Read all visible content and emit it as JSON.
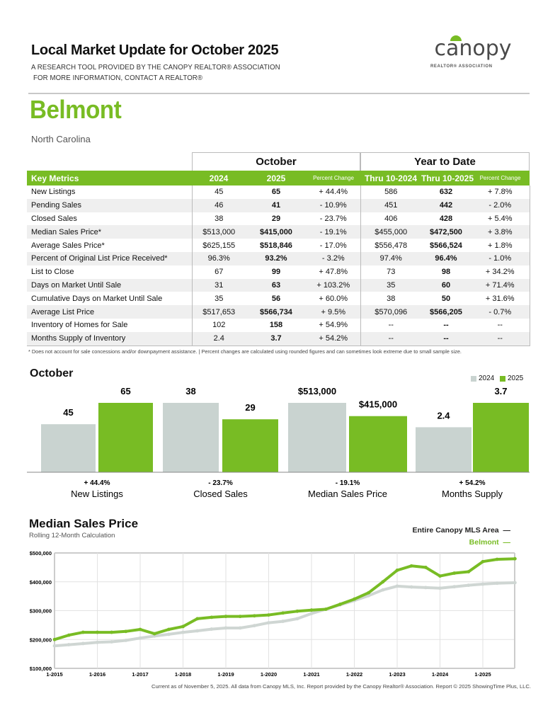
{
  "header": {
    "title": "Local Market Update for October 2025",
    "subtitle_1": "A RESEARCH TOOL PROVIDED BY THE CANOPY REALTOR® ASSOCIATION",
    "subtitle_2": "FOR MORE INFORMATION, CONTACT A REALTOR®",
    "logo_text": "canopy",
    "logo_subtext": "REALTOR® ASSOCIATION",
    "area": "Belmont",
    "state": "North Carolina"
  },
  "colors": {
    "accent": "#78bc24",
    "gray_bar": "#c9d3d0",
    "mls_line": "#cfd6d3"
  },
  "table": {
    "group_october": "October",
    "group_ytd": "Year to Date",
    "columns": [
      "Key Metrics",
      "2024",
      "2025",
      "Percent Change",
      "Thru 10-2024",
      "Thru 10-2025",
      "Percent Change"
    ],
    "rows": [
      [
        "New Listings",
        "45",
        "65",
        "+ 44.4%",
        "586",
        "632",
        "+ 7.8%"
      ],
      [
        "Pending Sales",
        "46",
        "41",
        "- 10.9%",
        "451",
        "442",
        "- 2.0%"
      ],
      [
        "Closed Sales",
        "38",
        "29",
        "- 23.7%",
        "406",
        "428",
        "+ 5.4%"
      ],
      [
        "Median Sales Price*",
        "$513,000",
        "$415,000",
        "- 19.1%",
        "$455,000",
        "$472,500",
        "+ 3.8%"
      ],
      [
        "Average Sales Price*",
        "$625,155",
        "$518,846",
        "- 17.0%",
        "$556,478",
        "$566,524",
        "+ 1.8%"
      ],
      [
        "Percent of Original List Price Received*",
        "96.3%",
        "93.2%",
        "- 3.2%",
        "97.4%",
        "96.4%",
        "- 1.0%"
      ],
      [
        "List to Close",
        "67",
        "99",
        "+ 47.8%",
        "73",
        "98",
        "+ 34.2%"
      ],
      [
        "Days on Market Until Sale",
        "31",
        "63",
        "+ 103.2%",
        "35",
        "60",
        "+ 71.4%"
      ],
      [
        "Cumulative Days on Market Until Sale",
        "35",
        "56",
        "+ 60.0%",
        "38",
        "50",
        "+ 31.6%"
      ],
      [
        "Average List Price",
        "$517,653",
        "$566,734",
        "+ 9.5%",
        "$570,096",
        "$566,205",
        "- 0.7%"
      ],
      [
        "Inventory of Homes for Sale",
        "102",
        "158",
        "+ 54.9%",
        "--",
        "--",
        "--"
      ],
      [
        "Months Supply of Inventory",
        "2.4",
        "3.7",
        "+ 54.2%",
        "--",
        "--",
        "--"
      ]
    ],
    "footnote": "* Does not account for sale concessions and/or downpayment assistance.  |  Percent changes are calculated using rounded figures and can sometimes look extreme due to small sample size."
  },
  "chart_data": [
    {
      "type": "bar",
      "title": "October",
      "legend": [
        "2024",
        "2025"
      ],
      "legend_position": "top-right",
      "categories": [
        "New Listings",
        "Closed Sales",
        "Median Sales Price",
        "Months Supply"
      ],
      "series": [
        {
          "name": "2024",
          "values": [
            45,
            38,
            513000,
            2.4
          ],
          "labels": [
            "45",
            "38",
            "$513,000",
            "2.4"
          ]
        },
        {
          "name": "2025",
          "values": [
            65,
            29,
            415000,
            3.7
          ],
          "labels": [
            "65",
            "29",
            "$415,000",
            "3.7"
          ]
        }
      ],
      "percent_changes": [
        "+ 44.4%",
        "- 23.7%",
        "- 19.1%",
        "+ 54.2%"
      ]
    },
    {
      "type": "line",
      "title": "Median Sales Price",
      "subtitle": "Rolling 12-Month Calculation",
      "legend_position": "top-right",
      "ylim": [
        100000,
        500000
      ],
      "y_ticks": [
        "$100,000",
        "$200,000",
        "$300,000",
        "$400,000",
        "$500,000"
      ],
      "x_ticks": [
        "1-2015",
        "1-2016",
        "1-2017",
        "1-2018",
        "1-2019",
        "1-2020",
        "1-2021",
        "1-2022",
        "1-2023",
        "1-2024",
        "1-2025"
      ],
      "grid": true,
      "series": [
        {
          "name": "Entire Canopy MLS Area",
          "color": "#cfd6d3",
          "points": [
            [
              "2015-01",
              178000
            ],
            [
              "2015-05",
              182000
            ],
            [
              "2015-09",
              186000
            ],
            [
              "2016-01",
              190000
            ],
            [
              "2016-05",
              192000
            ],
            [
              "2016-09",
              197000
            ],
            [
              "2017-01",
              205000
            ],
            [
              "2017-05",
              212000
            ],
            [
              "2017-09",
              218000
            ],
            [
              "2018-01",
              225000
            ],
            [
              "2018-05",
              230000
            ],
            [
              "2018-09",
              236000
            ],
            [
              "2019-01",
              240000
            ],
            [
              "2019-05",
              240000
            ],
            [
              "2019-09",
              248000
            ],
            [
              "2020-01",
              258000
            ],
            [
              "2020-05",
              263000
            ],
            [
              "2020-09",
              272000
            ],
            [
              "2021-01",
              290000
            ],
            [
              "2021-05",
              305000
            ],
            [
              "2021-09",
              320000
            ],
            [
              "2022-01",
              335000
            ],
            [
              "2022-05",
              352000
            ],
            [
              "2022-09",
              372000
            ],
            [
              "2023-01",
              385000
            ],
            [
              "2023-05",
              382000
            ],
            [
              "2023-09",
              380000
            ],
            [
              "2024-01",
              378000
            ],
            [
              "2024-05",
              383000
            ],
            [
              "2024-09",
              388000
            ],
            [
              "2025-01",
              392000
            ],
            [
              "2025-05",
              395000
            ],
            [
              "2025-10",
              397000
            ]
          ]
        },
        {
          "name": "Belmont",
          "color": "#78bc24",
          "points": [
            [
              "2015-01",
              200000
            ],
            [
              "2015-05",
              215000
            ],
            [
              "2015-09",
              225000
            ],
            [
              "2016-01",
              225000
            ],
            [
              "2016-05",
              225000
            ],
            [
              "2016-09",
              228000
            ],
            [
              "2017-01",
              235000
            ],
            [
              "2017-05",
              220000
            ],
            [
              "2017-09",
              235000
            ],
            [
              "2018-01",
              245000
            ],
            [
              "2018-05",
              272000
            ],
            [
              "2018-09",
              277000
            ],
            [
              "2019-01",
              280000
            ],
            [
              "2019-05",
              280000
            ],
            [
              "2019-09",
              282000
            ],
            [
              "2020-01",
              285000
            ],
            [
              "2020-05",
              292000
            ],
            [
              "2020-09",
              298000
            ],
            [
              "2021-01",
              302000
            ],
            [
              "2021-05",
              305000
            ],
            [
              "2021-09",
              322000
            ],
            [
              "2022-01",
              340000
            ],
            [
              "2022-05",
              362000
            ],
            [
              "2022-09",
              400000
            ],
            [
              "2023-01",
              440000
            ],
            [
              "2023-05",
              455000
            ],
            [
              "2023-09",
              450000
            ],
            [
              "2024-01",
              420000
            ],
            [
              "2024-05",
              430000
            ],
            [
              "2024-09",
              435000
            ],
            [
              "2025-01",
              470000
            ],
            [
              "2025-05",
              478000
            ],
            [
              "2025-10",
              480000
            ]
          ]
        }
      ]
    }
  ],
  "footer": "Current as of November 5, 2025. All data from Canopy MLS, Inc. Report provided by the Canopy Realtor® Association. Report © 2025 ShowingTime Plus, LLC."
}
